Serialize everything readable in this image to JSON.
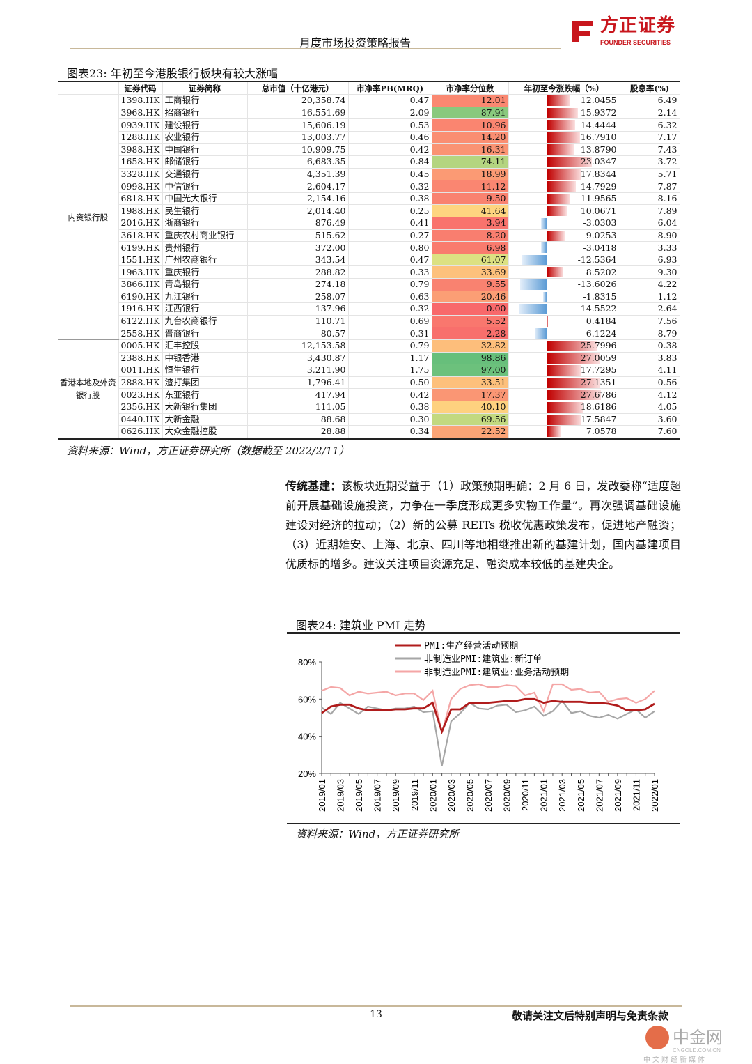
{
  "header": {
    "title": "月度市场投资策略报告",
    "logo_cn": "方正证券",
    "logo_en": "FOUNDER SECURITIES",
    "brand_color": "#c8161d"
  },
  "table23": {
    "title": "图表23:  年初至今港股银行板块有较大涨幅",
    "columns": [
      "证券代码",
      "证券简称",
      "总市值（十亿港元）",
      "市净率PB(MRQ)",
      "市净率分位数",
      "年初至今涨跌幅（%）",
      "股息率(%)"
    ],
    "groups": [
      {
        "label": "内资银行股",
        "rows": [
          [
            "1398.HK",
            "工商银行",
            "20,358.74",
            "0.47",
            "12.01",
            "12.0455",
            "6.49"
          ],
          [
            "3968.HK",
            "招商银行",
            "16,551.69",
            "2.09",
            "87.91",
            "15.9372",
            "2.14"
          ],
          [
            "0939.HK",
            "建设银行",
            "15,606.19",
            "0.53",
            "10.96",
            "14.4444",
            "6.32"
          ],
          [
            "1288.HK",
            "农业银行",
            "13,003.77",
            "0.46",
            "14.20",
            "16.7910",
            "7.17"
          ],
          [
            "3988.HK",
            "中国银行",
            "10,909.75",
            "0.42",
            "16.31",
            "13.8790",
            "7.43"
          ],
          [
            "1658.HK",
            "邮储银行",
            "6,683.35",
            "0.84",
            "74.11",
            "23.0347",
            "3.72"
          ],
          [
            "3328.HK",
            "交通银行",
            "4,351.39",
            "0.45",
            "18.99",
            "17.8344",
            "5.71"
          ],
          [
            "0998.HK",
            "中信银行",
            "2,604.17",
            "0.32",
            "11.12",
            "14.7929",
            "7.87"
          ],
          [
            "6818.HK",
            "中国光大银行",
            "2,154.16",
            "0.38",
            "9.50",
            "11.9565",
            "8.16"
          ],
          [
            "1988.HK",
            "民生银行",
            "2,014.40",
            "0.25",
            "41.64",
            "10.0671",
            "7.89"
          ],
          [
            "2016.HK",
            "浙商银行",
            "876.49",
            "0.41",
            "3.94",
            "-3.0303",
            "6.04"
          ],
          [
            "3618.HK",
            "重庆农村商业银行",
            "515.62",
            "0.27",
            "8.20",
            "9.0253",
            "8.90"
          ],
          [
            "6199.HK",
            "贵州银行",
            "372.00",
            "0.80",
            "6.98",
            "-3.0418",
            "3.33"
          ],
          [
            "1551.HK",
            "广州农商银行",
            "343.54",
            "0.47",
            "61.07",
            "-12.5364",
            "6.93"
          ],
          [
            "1963.HK",
            "重庆银行",
            "288.82",
            "0.33",
            "33.69",
            "8.5202",
            "9.30"
          ],
          [
            "3866.HK",
            "青岛银行",
            "274.18",
            "0.79",
            "9.55",
            "-13.6026",
            "4.22"
          ],
          [
            "6190.HK",
            "九江银行",
            "258.07",
            "0.63",
            "20.46",
            "-1.8315",
            "1.12"
          ],
          [
            "1916.HK",
            "江西银行",
            "137.96",
            "0.32",
            "0.00",
            "-14.5522",
            "2.64"
          ],
          [
            "6122.HK",
            "九台农商银行",
            "110.71",
            "0.69",
            "5.52",
            "0.4184",
            "7.56"
          ],
          [
            "2558.HK",
            "晋商银行",
            "80.57",
            "0.31",
            "2.28",
            "-6.1224",
            "8.79"
          ]
        ]
      },
      {
        "label": "香港本地及外资银行股",
        "rows": [
          [
            "0005.HK",
            "汇丰控股",
            "12,153.58",
            "0.79",
            "32.82",
            "25.7996",
            "0.38"
          ],
          [
            "2388.HK",
            "中银香港",
            "3,430.87",
            "1.17",
            "98.86",
            "27.0059",
            "3.83"
          ],
          [
            "0011.HK",
            "恒生银行",
            "3,211.90",
            "1.75",
            "97.00",
            "17.7295",
            "4.11"
          ],
          [
            "2888.HK",
            "渣打集团",
            "1,796.41",
            "0.50",
            "33.51",
            "27.1351",
            "0.56"
          ],
          [
            "0023.HK",
            "东亚银行",
            "417.94",
            "0.42",
            "17.37",
            "27.6786",
            "4.12"
          ],
          [
            "2356.HK",
            "大新银行集团",
            "111.05",
            "0.38",
            "40.10",
            "18.6186",
            "4.05"
          ],
          [
            "0440.HK",
            "大新金融",
            "88.68",
            "0.30",
            "69.56",
            "17.5847",
            "3.60"
          ],
          [
            "0626.HK",
            "大众金融控股",
            "28.88",
            "0.34",
            "22.52",
            "7.0578",
            "7.60"
          ]
        ]
      }
    ],
    "colors": {
      "low": "#f8696b",
      "mid": "#ffeb84",
      "high": "#63be7b",
      "pos_bar": "#c00000",
      "neg_bar": "#5b9bd5"
    },
    "source": "资料来源：Wind，方正证券研究所（数据截至 2022/2/11）"
  },
  "paragraph": {
    "lead": "传统基建：",
    "body": "该板块近期受益于（1）政策预期明确：2 月 6 日，发改委称“适度超前开展基础设施投资，力争在一季度形成更多实物工作量”。再次强调基础设施建设对经济的拉动；（2）新的公募 REITs 税收优惠政策发布，促进地产融资；（3）近期雄安、上海、北京、四川等地相继推出新的基建计划，国内基建项目优质标的增多。建议关注项目资源充足、融资成本较低的基建央企。"
  },
  "chart24": {
    "title": "图表24:  建筑业 PMI 走势",
    "source": "资料来源：Wind，方正证券研究所"
  },
  "chart_data": {
    "type": "line",
    "title": "图表24:  建筑业 PMI 走势",
    "y_ticks": [
      "20%",
      "40%",
      "60%",
      "80%"
    ],
    "ylim": [
      20,
      80
    ],
    "x_tick_labels": [
      "2019/01",
      "2019/03",
      "2019/05",
      "2019/07",
      "2019/09",
      "2019/11",
      "2020/01",
      "2020/03",
      "2020/05",
      "2020/07",
      "2020/09",
      "2020/11",
      "2021/01",
      "2021/03",
      "2021/05",
      "2021/07",
      "2021/09",
      "2021/11",
      "2022/01"
    ],
    "x_range": [
      "2019/01",
      "2022/01"
    ],
    "legend_position": "top",
    "series": [
      {
        "name": "PMI:生产经营活动预期",
        "color": "#b01c1c",
        "values": [
          52.5,
          56,
          57,
          57,
          55,
          54,
          54,
          54,
          54.5,
          54.5,
          55,
          55,
          58,
          42.5,
          54.5,
          54.5,
          58,
          58,
          58,
          58.5,
          59,
          59,
          60,
          60,
          58,
          59,
          58.5,
          58.5,
          58.5,
          58,
          58,
          57.5,
          56.5,
          54,
          54,
          54.5,
          57.5
        ]
      },
      {
        "name": "非制造业PMI:建筑业:新订单",
        "color": "#a6a6a6",
        "values": [
          55.5,
          52,
          58,
          55,
          52,
          56,
          55,
          54,
          55,
          55,
          56,
          53,
          53.5,
          24,
          48,
          52.5,
          58,
          55,
          54.5,
          56.5,
          57,
          53,
          54,
          56,
          51,
          53.5,
          59,
          52.5,
          53.5,
          51,
          50,
          51.5,
          49.5,
          52,
          54.5,
          50,
          53.5
        ]
      },
      {
        "name": "非制造业PMI:建筑业:业务活动预期",
        "color": "#f4a6a6",
        "values": [
          64.5,
          66.5,
          66,
          62,
          64,
          63,
          63.5,
          64,
          62,
          63,
          63,
          59.5,
          64.5,
          42,
          60,
          65.5,
          67.5,
          68,
          66.5,
          66.5,
          67.5,
          67,
          62,
          63.5,
          53.5,
          68,
          68,
          65,
          65.5,
          63.5,
          64,
          58.5,
          60,
          60.5,
          58,
          60,
          64.5
        ]
      }
    ]
  },
  "footer": {
    "page_number": "13",
    "disclaimer": "敬请关注文后特别声明与免责条款",
    "watermark": "中金网",
    "watermark_en": "CNGOLD.COM.CN",
    "watermark_sub": "中文财经新媒体"
  }
}
